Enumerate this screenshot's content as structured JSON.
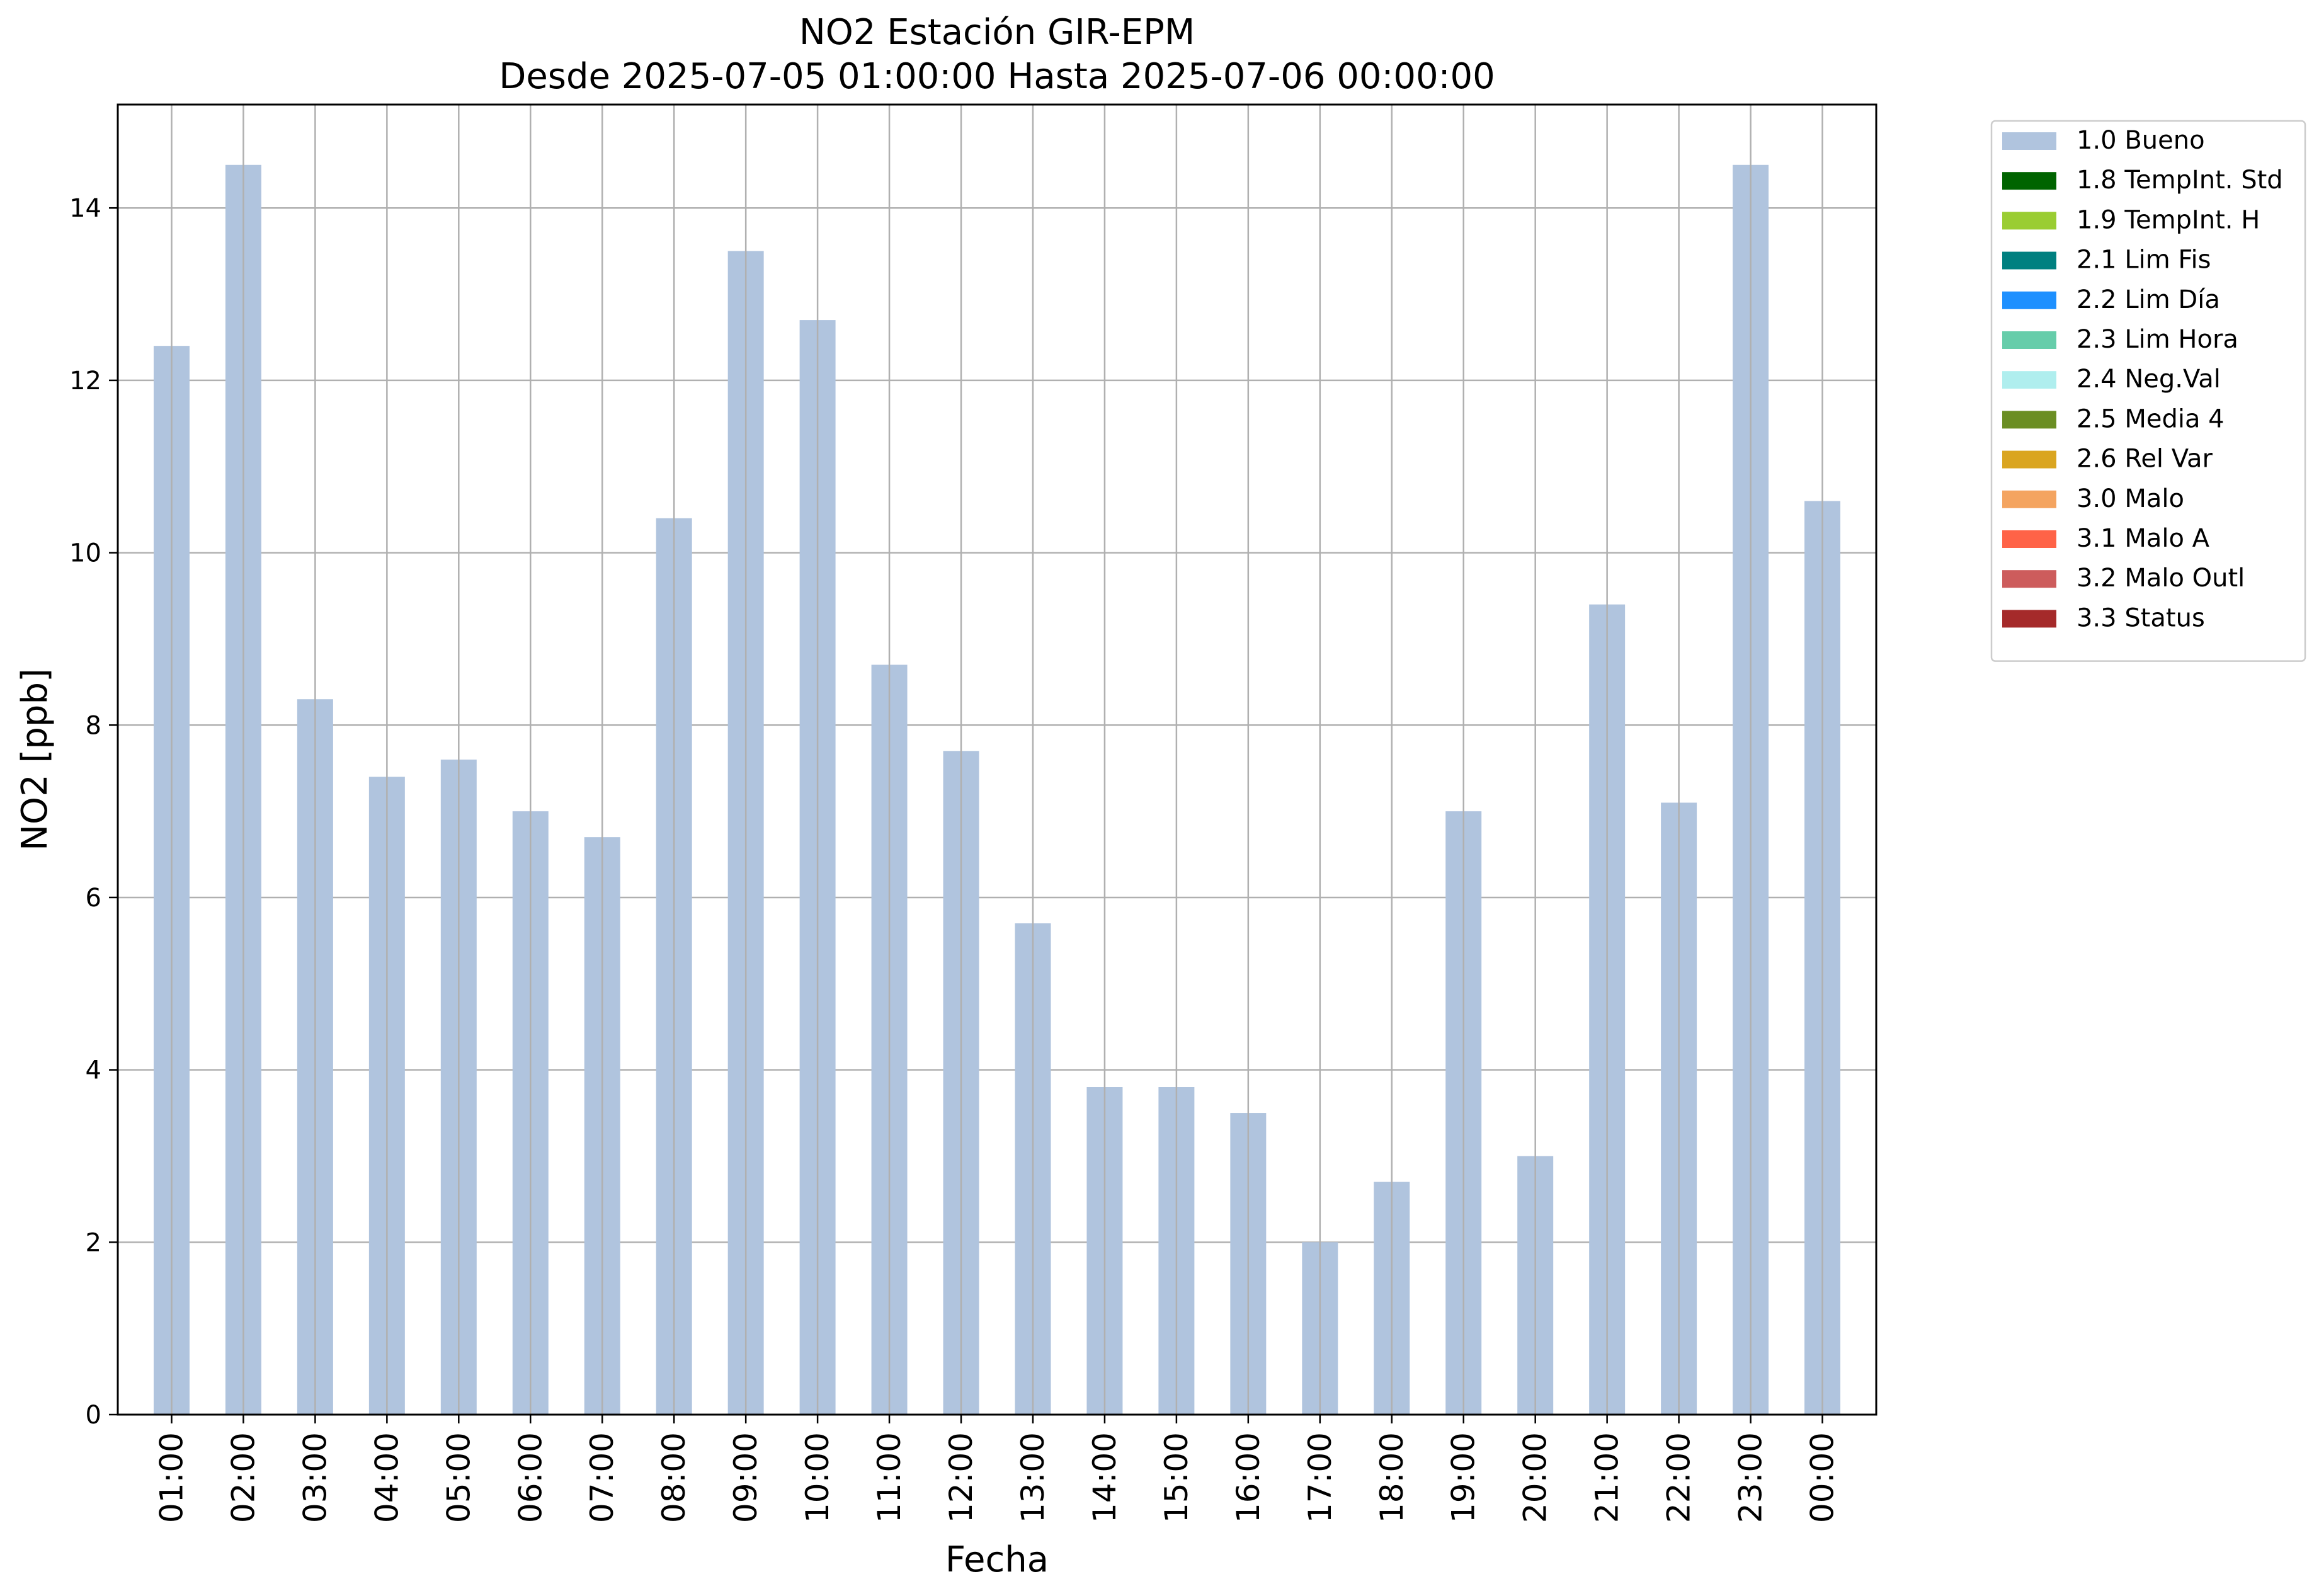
{
  "chart_data": {
    "type": "bar",
    "title": "NO2 Estación GIR-EPM",
    "subtitle": "Desde 2025-07-05 01:00:00 Hasta 2025-07-06 00:00:00",
    "xlabel": "Fecha",
    "ylabel": "NO2 [ppb]",
    "ylim": [
      0,
      15.2
    ],
    "yticks": [
      "0",
      "2",
      "4",
      "6",
      "8",
      "10",
      "12",
      "14"
    ],
    "grid": true,
    "legend_position": "outside-right",
    "categories": [
      "01:00",
      "02:00",
      "03:00",
      "04:00",
      "05:00",
      "06:00",
      "07:00",
      "08:00",
      "09:00",
      "10:00",
      "11:00",
      "12:00",
      "13:00",
      "14:00",
      "15:00",
      "16:00",
      "17:00",
      "18:00",
      "19:00",
      "20:00",
      "21:00",
      "22:00",
      "23:00",
      "00:00"
    ],
    "series": [
      {
        "name": "1.0 Bueno",
        "color": "#b0c4de",
        "values": [
          12.4,
          14.5,
          8.3,
          7.4,
          7.6,
          7.0,
          6.7,
          10.4,
          13.5,
          12.7,
          8.7,
          7.7,
          5.7,
          3.8,
          3.8,
          3.5,
          2.0,
          2.7,
          7.0,
          3.0,
          9.4,
          7.1,
          14.5,
          10.6
        ]
      }
    ],
    "legend": [
      {
        "label": "1.0 Bueno",
        "color": "#b0c4de"
      },
      {
        "label": "1.8 TempInt. Std",
        "color": "#006400"
      },
      {
        "label": "1.9 TempInt. H",
        "color": "#9acd32"
      },
      {
        "label": "2.1 Lim Fis",
        "color": "#008080"
      },
      {
        "label": "2.2 Lim Día",
        "color": "#1e90ff"
      },
      {
        "label": "2.3 Lim Hora",
        "color": "#66cdaa"
      },
      {
        "label": "2.4 Neg.Val",
        "color": "#afeeee"
      },
      {
        "label": "2.5 Media 4",
        "color": "#6b8e23"
      },
      {
        "label": "2.6 Rel Var",
        "color": "#daa520"
      },
      {
        "label": "3.0 Malo",
        "color": "#f4a460"
      },
      {
        "label": "3.1 Malo A",
        "color": "#ff6347"
      },
      {
        "label": "3.2 Malo Outl",
        "color": "#cd5c5c"
      },
      {
        "label": "3.3 Status",
        "color": "#a52a2a"
      }
    ]
  }
}
